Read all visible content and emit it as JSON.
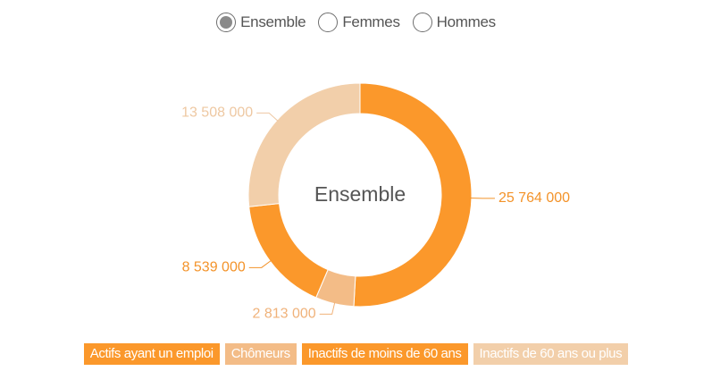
{
  "selector": {
    "options": [
      {
        "label": "Ensemble",
        "selected": true
      },
      {
        "label": "Femmes",
        "selected": false
      },
      {
        "label": "Hommes",
        "selected": false
      }
    ]
  },
  "chart_data": {
    "type": "pie",
    "title": "Ensemble",
    "categories": [
      "Actifs ayant un emploi",
      "Chômeurs",
      "Inactifs de moins de 60 ans",
      "Inactifs de 60 ans ou plus"
    ],
    "values": [
      25764000,
      2813000,
      8539000,
      13508000
    ],
    "value_labels": [
      "25 764 000",
      "2 813 000",
      "8 539 000",
      "13 508 000"
    ],
    "colors": [
      "#fb982b",
      "#f3bc87",
      "#fb982b",
      "#f2cfaa"
    ],
    "label_colors": [
      "#f3932a",
      "#f0b27a",
      "#f3932a",
      "#eec8a2"
    ],
    "legend_colors": [
      "#fb982b",
      "#f3bc87",
      "#fb982b",
      "#f2cfaa"
    ],
    "legend_placement": "bottom"
  }
}
